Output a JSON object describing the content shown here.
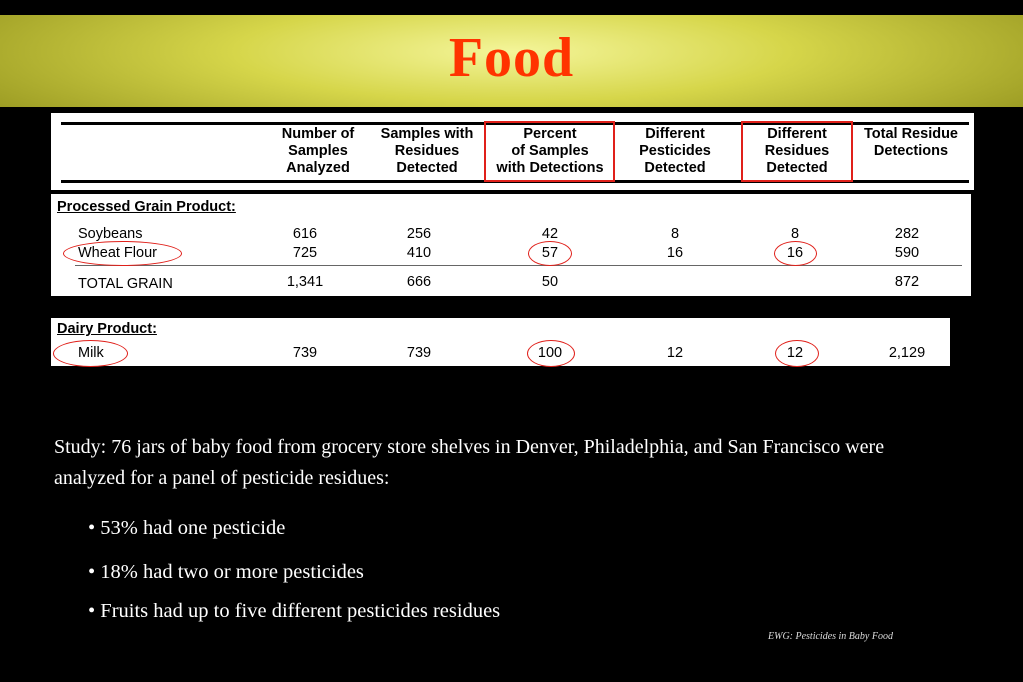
{
  "slide": {
    "title": "Food"
  },
  "table": {
    "headers": [
      "Number of\nSamples\nAnalyzed",
      "Samples with\nResidues\nDetected",
      "Percent\nof Samples\nwith Detections",
      "Different\nPesticides\nDetected",
      "Different\nResidues\nDetected",
      "Total Residue\nDetections"
    ],
    "grain": {
      "section_label": "Processed Grain Product:",
      "rows": [
        {
          "label": "Soybeans",
          "values": [
            "616",
            "256",
            "42",
            "8",
            "8",
            "282"
          ]
        },
        {
          "label": "Wheat Flour",
          "values": [
            "725",
            "410",
            "57",
            "16",
            "16",
            "590"
          ]
        }
      ],
      "total": {
        "label": "TOTAL GRAIN",
        "values": [
          "1,341",
          "666",
          "50",
          "",
          "",
          "872"
        ]
      }
    },
    "dairy": {
      "section_label": "Dairy Product:",
      "rows": [
        {
          "label": "Milk",
          "values": [
            "739",
            "739",
            "100",
            "12",
            "12",
            "2,129"
          ]
        }
      ]
    },
    "highlight_color": "#e0201a"
  },
  "study": {
    "text": "Study:  76 jars of baby food from grocery store shelves in Denver, Philadelphia, and San Francisco were analyzed for a panel of pesticide residues:",
    "bullets": [
      "• 53% had one pesticide",
      "• 18% had two or more pesticides",
      "• Fruits had up to five different pesticides residues"
    ],
    "credit": "EWG: Pesticides in Baby Food"
  },
  "colors": {
    "title": "#ff3300",
    "banner": "#d6d64a",
    "background": "#000000"
  }
}
